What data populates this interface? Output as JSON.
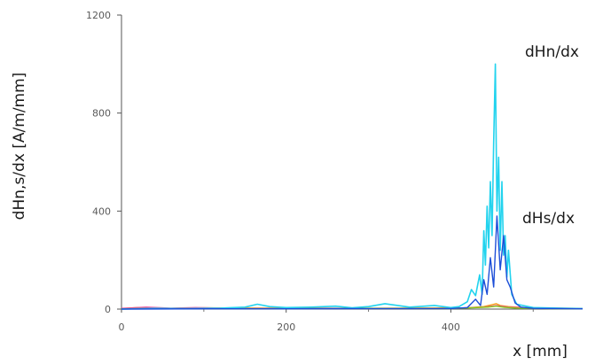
{
  "chart_data": {
    "type": "line",
    "title": "",
    "xlabel": "x [mm]",
    "ylabel": "dHn,s/dx [A/m/mm]",
    "xlim": [
      0,
      560
    ],
    "ylim": [
      0,
      1200
    ],
    "x_ticks": [
      0,
      200,
      400
    ],
    "x_tick_labels": [
      "0",
      "200",
      "400"
    ],
    "y_ticks": [
      0,
      400,
      800,
      1200
    ],
    "y_tick_labels": [
      "0",
      "400",
      "800",
      "1200"
    ],
    "grid": false,
    "legend": "none",
    "annotations": [
      {
        "text": "dHn/dx",
        "x": 490,
        "y": 1060
      },
      {
        "text": "dHs/dx",
        "x": 490,
        "y": 370
      }
    ],
    "series": [
      {
        "name": "dHn/dx",
        "color": "#22d3ee",
        "x": [
          0,
          40,
          80,
          120,
          150,
          165,
          180,
          200,
          230,
          260,
          280,
          300,
          320,
          350,
          380,
          400,
          410,
          420,
          425,
          430,
          435,
          438,
          440,
          442,
          444,
          446,
          448,
          450,
          452,
          454,
          456,
          458,
          460,
          462,
          464,
          466,
          468,
          470,
          474,
          480,
          500,
          530,
          560
        ],
        "y": [
          0,
          3,
          2,
          4,
          8,
          20,
          10,
          6,
          8,
          12,
          5,
          10,
          22,
          8,
          15,
          6,
          10,
          30,
          80,
          55,
          140,
          60,
          320,
          180,
          420,
          250,
          520,
          300,
          680,
          1000,
          400,
          620,
          240,
          520,
          220,
          300,
          130,
          240,
          60,
          20,
          6,
          4,
          2
        ]
      },
      {
        "name": "dHs/dx",
        "color": "#1d4ed8",
        "x": [
          0,
          100,
          200,
          300,
          400,
          420,
          430,
          436,
          440,
          444,
          448,
          452,
          456,
          460,
          464,
          468,
          472,
          478,
          485,
          500,
          560
        ],
        "y": [
          0,
          1,
          1,
          2,
          2,
          6,
          40,
          15,
          120,
          60,
          210,
          90,
          380,
          160,
          300,
          120,
          90,
          25,
          8,
          3,
          1
        ]
      },
      {
        "name": "",
        "color": "#f59e0b",
        "x": [
          0,
          20,
          60,
          100,
          180,
          260,
          340,
          420,
          440,
          450,
          455,
          460,
          470,
          490,
          520,
          560
        ],
        "y": [
          2,
          6,
          3,
          5,
          4,
          3,
          4,
          5,
          10,
          18,
          22,
          15,
          10,
          6,
          4,
          3
        ]
      },
      {
        "name": "",
        "color": "#ec4899",
        "x": [
          0,
          30,
          60,
          90,
          140,
          220,
          300,
          400,
          440,
          455,
          470,
          500,
          560
        ],
        "y": [
          3,
          8,
          4,
          6,
          3,
          4,
          3,
          3,
          8,
          14,
          8,
          4,
          2
        ]
      },
      {
        "name": "",
        "color": "#84cc16",
        "x": [
          0,
          50,
          100,
          200,
          300,
          400,
          445,
          455,
          465,
          480,
          520,
          560
        ],
        "y": [
          1,
          3,
          2,
          2,
          3,
          2,
          8,
          12,
          7,
          4,
          2,
          1
        ]
      }
    ]
  }
}
